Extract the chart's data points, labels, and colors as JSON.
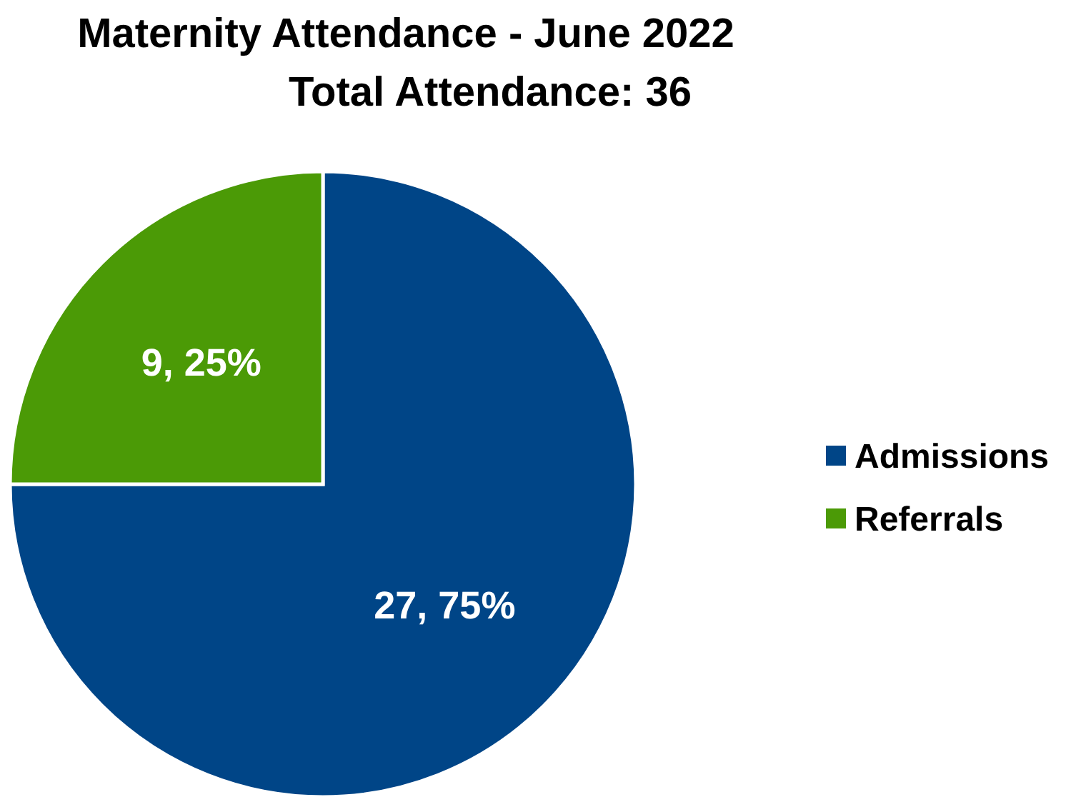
{
  "chart_data": {
    "type": "pie",
    "title": "Maternity Attendance - June 2022",
    "subtitle": "Total Attendance: 36",
    "categories": [
      "Admissions",
      "Referrals"
    ],
    "values": [
      27,
      9
    ],
    "colors": [
      "#004587",
      "#4b9a06"
    ],
    "value_labels": [
      "27, 75%",
      "9, 25%"
    ],
    "legend": "right"
  }
}
